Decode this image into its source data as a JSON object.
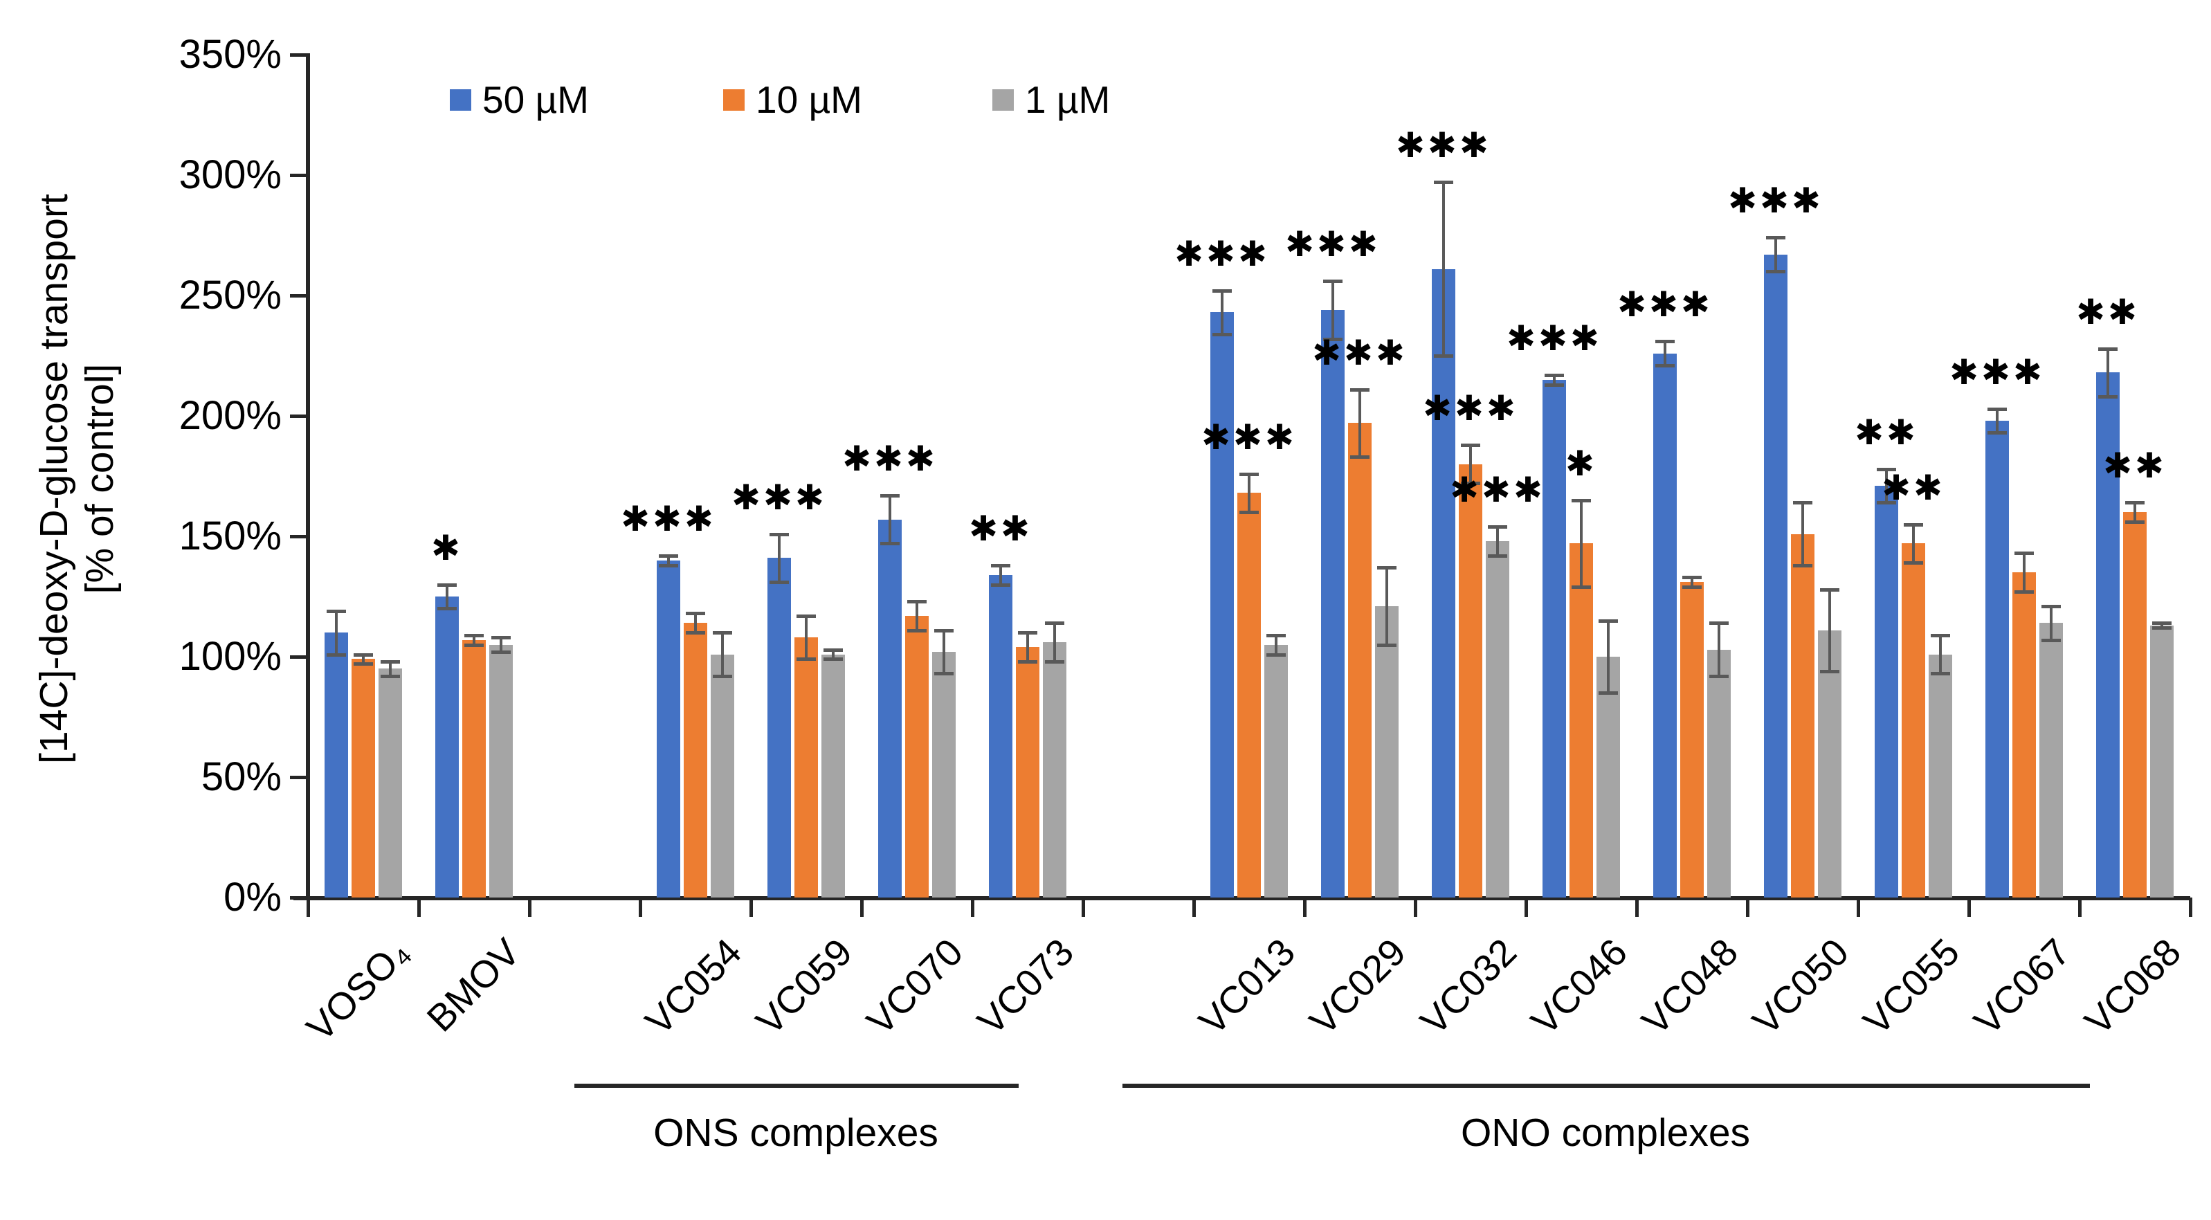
{
  "chart_data": {
    "type": "bar",
    "title": "",
    "categories": [
      "VOSO₄",
      "BMOV",
      "VC054",
      "VC059",
      "VC070",
      "VC073",
      "VC013",
      "VC029",
      "VC032",
      "VC046",
      "VC048",
      "VC050",
      "VC055",
      "VC067",
      "VC068"
    ],
    "slots": [
      0,
      1,
      3,
      4,
      5,
      6,
      8,
      9,
      10,
      11,
      12,
      13,
      14,
      15,
      16
    ],
    "series": [
      {
        "name": "50 µM",
        "color": "#4472C4",
        "values": [
          110,
          125,
          140,
          141,
          157,
          134,
          243,
          244,
          261,
          215,
          226,
          267,
          171,
          198,
          218
        ],
        "errors": [
          9,
          5,
          2,
          10,
          10,
          4,
          9,
          12,
          36,
          2,
          5,
          7,
          7,
          5,
          10
        ],
        "stars": [
          "",
          "*",
          "***",
          "***",
          "***",
          "**",
          "***",
          "***",
          "***",
          "***",
          "***",
          "***",
          "**",
          "***",
          "**"
        ]
      },
      {
        "name": "10 µM",
        "color": "#ED7D31",
        "values": [
          99,
          107,
          114,
          108,
          117,
          104,
          168,
          197,
          180,
          147,
          131,
          151,
          147,
          135,
          160
        ],
        "errors": [
          2,
          2,
          4,
          9,
          6,
          6,
          8,
          14,
          8,
          18,
          2,
          13,
          8,
          8,
          4
        ],
        "stars": [
          "",
          "",
          "",
          "",
          "",
          "",
          "***",
          "***",
          "***",
          "*",
          "",
          "",
          "**",
          "",
          "**"
        ]
      },
      {
        "name": "1 µM",
        "color": "#A5A5A5",
        "values": [
          95,
          105,
          101,
          101,
          102,
          106,
          105,
          121,
          148,
          100,
          103,
          111,
          101,
          114,
          113
        ],
        "errors": [
          3,
          3,
          9,
          2,
          9,
          8,
          4,
          16,
          6,
          15,
          11,
          17,
          8,
          7,
          1
        ],
        "stars": [
          "",
          "",
          "",
          "",
          "",
          "",
          "",
          "",
          "***",
          "",
          "",
          "",
          "",
          "",
          ""
        ]
      }
    ],
    "groups": [
      {
        "label": "ONS complexes",
        "categories": [
          "VC054",
          "VC059",
          "VC070",
          "VC073"
        ]
      },
      {
        "label": "ONO complexes",
        "categories": [
          "VC013",
          "VC029",
          "VC032",
          "VC046",
          "VC048",
          "VC050",
          "VC055",
          "VC067",
          "VC068"
        ]
      }
    ],
    "ylabel": "[14C]-deoxy-D-glucose transport [% of control]",
    "ylabel_lines": [
      "[14C]-deoxy-D-glucose transport",
      "[% of control]"
    ],
    "xlabel": "",
    "ylim": [
      0,
      350
    ],
    "ytick_step": 50,
    "ytick_suffix": "%",
    "grid": false,
    "legend_position": "top",
    "significance_note_symbols": [
      "*",
      "**",
      "***"
    ],
    "error_bar_color": "#595959",
    "axis_color": "#262626"
  }
}
